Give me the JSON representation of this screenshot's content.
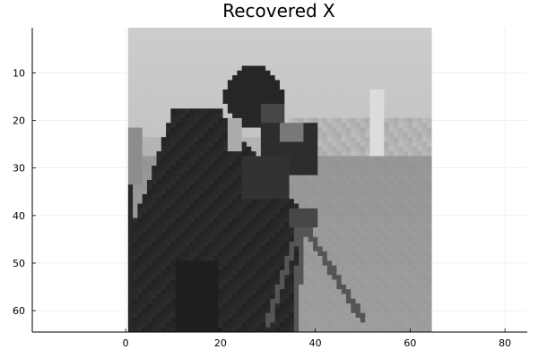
{
  "chart_data": {
    "type": "heatmap",
    "title": "Recovered X",
    "xlabel": "",
    "ylabel": "",
    "colormap": "grayscale",
    "image_size": [
      64,
      64
    ],
    "image_extent_x": [
      0.5,
      64.5
    ],
    "image_extent_y": [
      0.5,
      64.5
    ],
    "xlim": [
      -19.7,
      84.7
    ],
    "ylim": [
      0.5,
      64.5
    ],
    "y_inverted": true,
    "xticks": [
      0,
      20,
      40,
      60,
      80
    ],
    "yticks": [
      10,
      20,
      30,
      40,
      50,
      60
    ],
    "grid": true,
    "legend": "none",
    "subject": "cameraman"
  }
}
